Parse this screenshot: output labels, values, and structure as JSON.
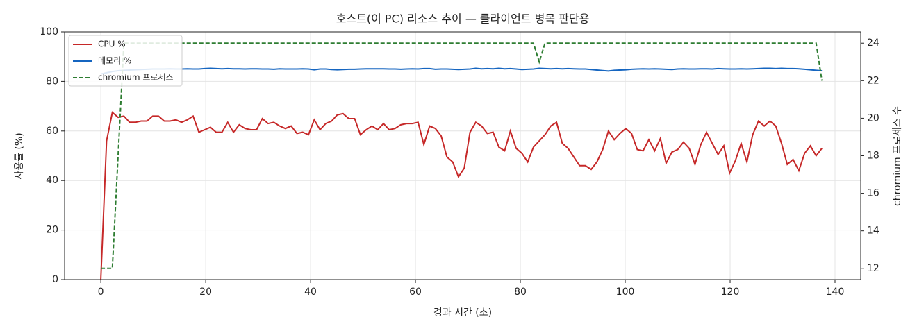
{
  "chart_data": {
    "type": "line",
    "title": "호스트(이 PC) 리소스 추이 — 클라이언트 병목 판단용",
    "xlabel": "경과 시간 (초)",
    "ylabel": "사용률 (%)",
    "y2label": "chromium 프로세스 수",
    "xlim": [
      -6.9,
      144.9
    ],
    "ylim": [
      0,
      100
    ],
    "y2lim": [
      11.4,
      24.6
    ],
    "xticks": [
      0,
      20,
      40,
      60,
      80,
      100,
      120,
      140
    ],
    "yticks": [
      0,
      20,
      40,
      60,
      80,
      100
    ],
    "y2ticks": [
      12,
      14,
      16,
      18,
      20,
      22,
      24
    ],
    "grid": true,
    "legend": "upper left",
    "x": [
      0,
      1.1,
      2.2,
      3.3,
      4.4,
      5.5,
      6.6,
      7.7,
      8.8,
      9.9,
      11,
      12.1,
      13.2,
      14.3,
      15.4,
      16.5,
      17.6,
      18.7,
      19.8,
      20.9,
      22,
      23.1,
      24.2,
      25.3,
      26.4,
      27.5,
      28.6,
      29.7,
      30.8,
      31.9,
      33,
      34.1,
      35.2,
      36.3,
      37.4,
      38.5,
      39.6,
      40.7,
      41.8,
      42.9,
      44,
      45.1,
      46.2,
      47.3,
      48.4,
      49.5,
      50.6,
      51.7,
      52.8,
      53.9,
      55,
      56.1,
      57.2,
      58.3,
      59.4,
      60.5,
      61.6,
      62.7,
      63.8,
      64.9,
      66,
      67.1,
      68.2,
      69.3,
      70.4,
      71.5,
      72.6,
      73.7,
      74.8,
      75.9,
      77,
      78.1,
      79.2,
      80.3,
      81.4,
      82.5,
      83.6,
      84.7,
      85.8,
      86.9,
      88,
      89.1,
      90.2,
      91.3,
      92.4,
      93.5,
      94.6,
      95.7,
      96.8,
      97.9,
      99,
      100.1,
      101.2,
      102.3,
      103.4,
      104.5,
      105.6,
      106.7,
      107.8,
      108.9,
      110,
      111.1,
      112.2,
      113.3,
      114.4,
      115.5,
      116.6,
      117.7,
      118.8,
      119.9,
      121,
      122.1,
      123.2,
      124.3,
      125.4,
      126.5,
      127.6,
      128.7,
      129.8,
      130.9,
      132,
      133.1,
      134.2,
      135.3,
      136.4,
      137.5
    ],
    "series": [
      {
        "name": "CPU %",
        "color": "#c62828",
        "values": [
          0,
          56,
          67.5,
          65.5,
          66,
          63.5,
          63.5,
          64,
          64,
          66,
          66,
          64,
          64,
          64.5,
          63.5,
          64.5,
          66,
          59.5,
          60.5,
          61.5,
          59.5,
          59.5,
          63.5,
          59.5,
          62.5,
          61,
          60.5,
          60.5,
          65,
          63,
          63.5,
          62,
          61,
          62,
          59,
          59.5,
          58.5,
          64.5,
          60.5,
          63,
          64,
          66.5,
          67,
          65,
          65,
          58.5,
          60.5,
          62,
          60.5,
          63,
          60.5,
          61,
          62.5,
          63,
          63,
          63.5,
          54.5,
          62,
          61,
          58,
          49.5,
          47.5,
          41.5,
          45,
          59.5,
          63.5,
          62,
          59,
          59.5,
          53.5,
          52,
          60,
          53,
          51,
          47.5,
          53.5,
          56,
          58.5,
          62,
          63.5,
          55,
          53,
          49.5,
          46,
          46,
          44.5,
          47.5,
          52.5,
          60,
          56.5,
          59,
          61,
          59,
          52.5,
          52,
          56.5,
          52,
          57,
          47,
          51.5,
          52.5,
          55.5,
          53,
          46.5,
          54.5,
          59.5,
          55,
          50.5,
          54,
          43,
          48,
          55,
          47.5,
          58.5,
          64,
          62,
          64,
          62,
          55,
          46.5,
          48.5,
          44,
          51,
          54,
          50,
          53
        ]
      },
      {
        "name": "메모리 %",
        "color": "#1565c0",
        "values": [
          83,
          83.5,
          84,
          84.3,
          84.5,
          84.6,
          84.7,
          84.8,
          84.9,
          85,
          85,
          85,
          85.1,
          85,
          85,
          85.1,
          85,
          85,
          85.2,
          85.3,
          85.2,
          85.1,
          85.2,
          85.1,
          85.1,
          85,
          85.1,
          85.1,
          85,
          85,
          84.9,
          85.1,
          85,
          85,
          85,
          85.1,
          85,
          84.7,
          85,
          85,
          84.8,
          84.7,
          84.8,
          84.9,
          84.9,
          85,
          85.1,
          85.1,
          85.1,
          85.1,
          85,
          85,
          84.9,
          85,
          85.1,
          85,
          85.2,
          85.2,
          84.9,
          85,
          85,
          84.9,
          84.8,
          84.9,
          85,
          85.3,
          85.1,
          85.2,
          85.1,
          85.3,
          85.1,
          85.2,
          85,
          84.8,
          84.9,
          85,
          85.3,
          85.2,
          85.1,
          85.2,
          85.1,
          85.2,
          85.1,
          85,
          85,
          84.8,
          84.6,
          84.4,
          84.2,
          84.5,
          84.6,
          84.7,
          84.9,
          85,
          85.1,
          85,
          85.1,
          85,
          84.9,
          84.8,
          85,
          85.1,
          85,
          85,
          85.1,
          85.1,
          85,
          85.2,
          85.1,
          85,
          85,
          85.1,
          85,
          85.1,
          85.2,
          85.3,
          85.3,
          85.2,
          85.3,
          85.2,
          85.2,
          85.1,
          84.9,
          84.7,
          84.5,
          84.3
        ]
      },
      {
        "name": "chromium 프로세스",
        "color": "#2e7d32",
        "axis": "y2",
        "dashed": true,
        "values": [
          12,
          12,
          12,
          18,
          24,
          24,
          24,
          24,
          24,
          24,
          24,
          24,
          24,
          24,
          24,
          24,
          24,
          24,
          24,
          24,
          24,
          24,
          24,
          24,
          24,
          24,
          24,
          24,
          24,
          24,
          24,
          24,
          24,
          24,
          24,
          24,
          24,
          24,
          24,
          24,
          24,
          24,
          24,
          24,
          24,
          24,
          24,
          24,
          24,
          24,
          24,
          24,
          24,
          24,
          24,
          24,
          24,
          24,
          24,
          24,
          24,
          24,
          24,
          24,
          24,
          24,
          24,
          24,
          24,
          24,
          24,
          24,
          24,
          24,
          24,
          24,
          23,
          24,
          24,
          24,
          24,
          24,
          24,
          24,
          24,
          24,
          24,
          24,
          24,
          24,
          24,
          24,
          24,
          24,
          24,
          24,
          24,
          24,
          24,
          24,
          24,
          24,
          24,
          24,
          24,
          24,
          24,
          24,
          24,
          24,
          24,
          24,
          24,
          24,
          24,
          24,
          24,
          24,
          24,
          24,
          24,
          24,
          24,
          24,
          24,
          22
        ]
      }
    ]
  }
}
